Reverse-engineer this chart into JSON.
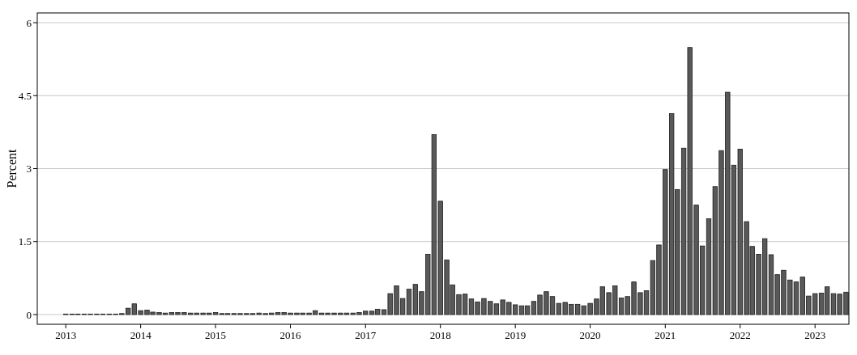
{
  "chart_data": {
    "type": "bar",
    "ylabel": "Percent",
    "x": [
      "2013-01",
      "2013-02",
      "2013-03",
      "2013-04",
      "2013-05",
      "2013-06",
      "2013-07",
      "2013-08",
      "2013-09",
      "2013-10",
      "2013-11",
      "2013-12",
      "2014-01",
      "2014-02",
      "2014-03",
      "2014-04",
      "2014-05",
      "2014-06",
      "2014-07",
      "2014-08",
      "2014-09",
      "2014-10",
      "2014-11",
      "2014-12",
      "2015-01",
      "2015-02",
      "2015-03",
      "2015-04",
      "2015-05",
      "2015-06",
      "2015-07",
      "2015-08",
      "2015-09",
      "2015-10",
      "2015-11",
      "2015-12",
      "2016-01",
      "2016-02",
      "2016-03",
      "2016-04",
      "2016-05",
      "2016-06",
      "2016-07",
      "2016-08",
      "2016-09",
      "2016-10",
      "2016-11",
      "2016-12",
      "2017-01",
      "2017-02",
      "2017-03",
      "2017-04",
      "2017-05",
      "2017-06",
      "2017-07",
      "2017-08",
      "2017-09",
      "2017-10",
      "2017-11",
      "2017-12",
      "2018-01",
      "2018-02",
      "2018-03",
      "2018-04",
      "2018-05",
      "2018-06",
      "2018-07",
      "2018-08",
      "2018-09",
      "2018-10",
      "2018-11",
      "2018-12",
      "2019-01",
      "2019-02",
      "2019-03",
      "2019-04",
      "2019-05",
      "2019-06",
      "2019-07",
      "2019-08",
      "2019-09",
      "2019-10",
      "2019-11",
      "2019-12",
      "2020-01",
      "2020-02",
      "2020-03",
      "2020-04",
      "2020-05",
      "2020-06",
      "2020-07",
      "2020-08",
      "2020-09",
      "2020-10",
      "2020-11",
      "2020-12",
      "2021-01",
      "2021-02",
      "2021-03",
      "2021-04",
      "2021-05",
      "2021-06",
      "2021-07",
      "2021-08",
      "2021-09",
      "2021-10",
      "2021-11",
      "2021-12",
      "2022-01",
      "2022-02",
      "2022-03",
      "2022-04",
      "2022-05",
      "2022-06",
      "2022-07",
      "2022-08",
      "2022-09",
      "2022-10",
      "2022-11",
      "2022-12",
      "2023-01",
      "2023-02",
      "2023-03",
      "2023-04",
      "2023-05",
      "2023-06"
    ],
    "values": [
      0.01,
      0.01,
      0.01,
      0.01,
      0.01,
      0.01,
      0.01,
      0.01,
      0.01,
      0.02,
      0.13,
      0.22,
      0.08,
      0.09,
      0.05,
      0.04,
      0.03,
      0.04,
      0.04,
      0.04,
      0.03,
      0.03,
      0.03,
      0.03,
      0.04,
      0.02,
      0.02,
      0.02,
      0.02,
      0.02,
      0.02,
      0.03,
      0.02,
      0.03,
      0.04,
      0.04,
      0.03,
      0.03,
      0.03,
      0.03,
      0.08,
      0.03,
      0.03,
      0.03,
      0.03,
      0.03,
      0.03,
      0.04,
      0.07,
      0.07,
      0.11,
      0.1,
      0.43,
      0.59,
      0.33,
      0.52,
      0.62,
      0.47,
      1.24,
      3.7,
      2.33,
      1.12,
      0.61,
      0.41,
      0.42,
      0.32,
      0.26,
      0.33,
      0.27,
      0.22,
      0.3,
      0.25,
      0.2,
      0.18,
      0.18,
      0.27,
      0.4,
      0.47,
      0.37,
      0.23,
      0.25,
      0.21,
      0.21,
      0.18,
      0.23,
      0.32,
      0.57,
      0.45,
      0.59,
      0.34,
      0.37,
      0.67,
      0.45,
      0.49,
      1.11,
      1.43,
      2.98,
      4.13,
      2.57,
      3.42,
      5.49,
      2.25,
      1.41,
      1.97,
      2.63,
      3.37,
      4.57,
      3.07,
      3.4,
      1.91,
      1.4,
      1.24,
      1.56,
      1.23,
      0.82,
      0.91,
      0.71,
      0.67,
      0.77,
      0.38,
      0.43,
      0.44,
      0.57,
      0.43,
      0.42,
      0.46
    ],
    "color": "#595959",
    "xlim": [
      "2012-08-15",
      "2023-06-15"
    ],
    "xticks": [
      {
        "value": "2013-01",
        "label": "2013"
      },
      {
        "value": "2014-01",
        "label": "2014"
      },
      {
        "value": "2015-01",
        "label": "2015"
      },
      {
        "value": "2016-01",
        "label": "2016"
      },
      {
        "value": "2017-01",
        "label": "2017"
      },
      {
        "value": "2018-01",
        "label": "2018"
      },
      {
        "value": "2019-01",
        "label": "2019"
      },
      {
        "value": "2020-01",
        "label": "2020"
      },
      {
        "value": "2021-01",
        "label": "2021"
      },
      {
        "value": "2022-01",
        "label": "2022"
      },
      {
        "value": "2023-01",
        "label": "2023"
      }
    ],
    "ylim": [
      -0.2,
      6.2
    ],
    "yticks": [
      0,
      1.5,
      3,
      4.5,
      6
    ],
    "grid": "y"
  }
}
